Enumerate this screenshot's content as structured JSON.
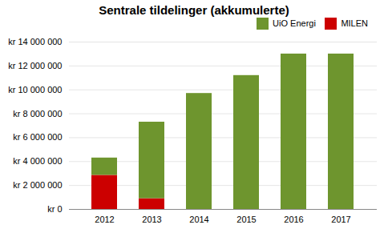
{
  "chart_data": {
    "type": "bar",
    "stacked": true,
    "title": "Sentrale tildelinger (akkumulerte)",
    "categories": [
      "2012",
      "2013",
      "2014",
      "2015",
      "2016",
      "2017"
    ],
    "series": [
      {
        "name": "UiO Energi",
        "color": "#6e952e",
        "values": [
          1450000,
          6400000,
          9700000,
          11200000,
          13000000,
          13000000
        ]
      },
      {
        "name": "MILEN",
        "color": "#cc0000",
        "values": [
          2850000,
          900000,
          0,
          0,
          0,
          0
        ]
      }
    ],
    "ylim": [
      0,
      14000000
    ],
    "yticks": [
      {
        "value": 0,
        "label": "kr 0"
      },
      {
        "value": 2000000,
        "label": "kr 2 000 000"
      },
      {
        "value": 4000000,
        "label": "kr 4 000 000"
      },
      {
        "value": 6000000,
        "label": "kr 6 000 000"
      },
      {
        "value": 8000000,
        "label": "kr 8 000 000"
      },
      {
        "value": 10000000,
        "label": "kr 10 000 000"
      },
      {
        "value": 12000000,
        "label": "kr 12 000 000"
      },
      {
        "value": 14000000,
        "label": "kr 14 000 000"
      }
    ],
    "grid": true,
    "legend": "upper right"
  }
}
